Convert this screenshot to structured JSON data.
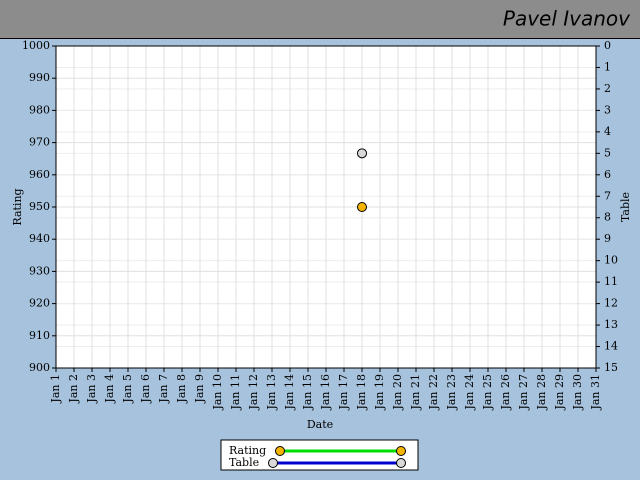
{
  "header": {
    "user": "Pavel Ivanov"
  },
  "chart_data": {
    "type": "line",
    "x_label": "Date",
    "y_label": "Rating",
    "y2_label": "Table",
    "categories": [
      "Jan 1",
      "Jan 2",
      "Jan 3",
      "Jan 4",
      "Jan 5",
      "Jan 6",
      "Jan 7",
      "Jan 8",
      "Jan 9",
      "Jan 10",
      "Jan 11",
      "Jan 12",
      "Jan 13",
      "Jan 14",
      "Jan 15",
      "Jan 16",
      "Jan 17",
      "Jan 18",
      "Jan 19",
      "Jan 20",
      "Jan 21",
      "Jan 22",
      "Jan 23",
      "Jan 24",
      "Jan 25",
      "Jan 26",
      "Jan 27",
      "Jan 28",
      "Jan 29",
      "Jan 30",
      "Jan 31"
    ],
    "ylim": [
      900,
      1000
    ],
    "yticks": [
      900,
      910,
      920,
      930,
      940,
      950,
      960,
      970,
      980,
      990,
      1000
    ],
    "y2lim": [
      0,
      15
    ],
    "y2_inverted": true,
    "y2ticks": [
      0,
      1,
      2,
      3,
      4,
      5,
      6,
      7,
      8,
      9,
      10,
      11,
      12,
      13,
      14,
      15
    ],
    "grid": true,
    "series": [
      {
        "name": "Rating",
        "color": "#00dd00",
        "marker_color": "#f5b400",
        "values": [
          null,
          null,
          null,
          null,
          null,
          null,
          null,
          null,
          null,
          null,
          null,
          null,
          null,
          null,
          null,
          null,
          null,
          950,
          null,
          null,
          null,
          null,
          null,
          null,
          null,
          null,
          null,
          null,
          null,
          null,
          null
        ]
      },
      {
        "name": "Table",
        "color": "#0000cc",
        "marker_color": "#d9d9d9",
        "axis": "y2",
        "values": [
          null,
          null,
          null,
          null,
          null,
          null,
          null,
          null,
          null,
          null,
          null,
          null,
          null,
          null,
          null,
          null,
          null,
          5,
          null,
          null,
          null,
          null,
          null,
          null,
          null,
          null,
          null,
          null,
          null,
          null,
          null
        ]
      }
    ]
  }
}
